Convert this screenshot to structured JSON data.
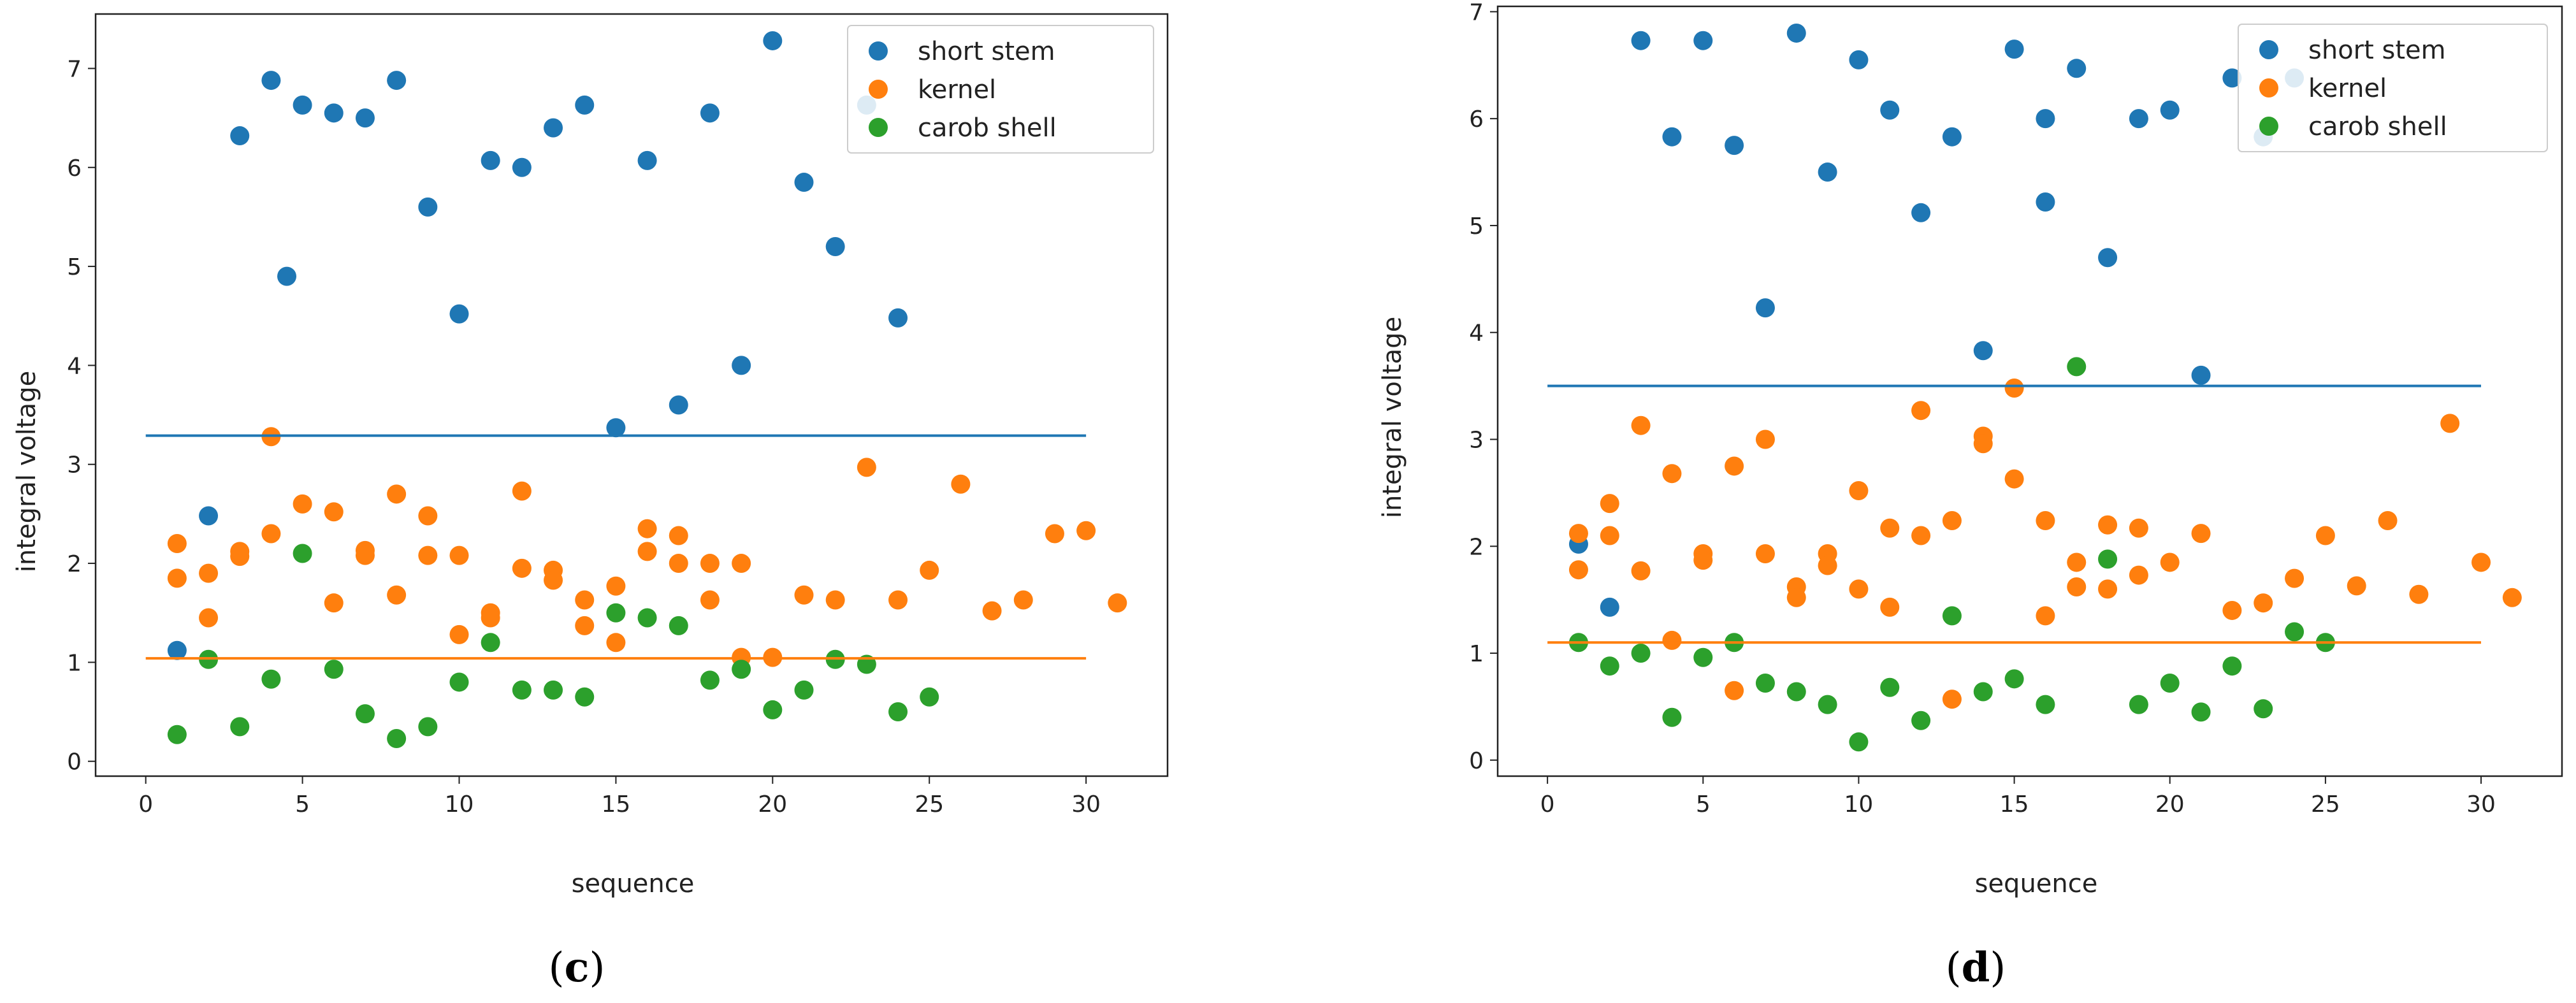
{
  "colors": {
    "short_stem": "#1f77b4",
    "kernel": "#ff7f0e",
    "carob_shell": "#2ca02c"
  },
  "panels": [
    {
      "letter_open": "(",
      "letter": "c",
      "letter_close": ")"
    },
    {
      "letter_open": "(",
      "letter": "d",
      "letter_close": ")"
    }
  ],
  "chart_data": [
    {
      "type": "scatter",
      "panel": "c",
      "title": "",
      "xlabel": "sequence",
      "ylabel": "integral voltage",
      "xlim": [
        -1.6,
        32.6
      ],
      "ylim": [
        -0.15,
        7.55
      ],
      "xticks": [
        0,
        5,
        10,
        15,
        20,
        25,
        30
      ],
      "yticks": [
        0,
        1,
        2,
        3,
        4,
        5,
        6,
        7
      ],
      "grid": false,
      "legend_position": "top-right",
      "series": [
        {
          "name": "short stem",
          "color_key": "short_stem",
          "points": [
            [
              1,
              1.12
            ],
            [
              2,
              2.48
            ],
            [
              3,
              6.32
            ],
            [
              4,
              6.88
            ],
            [
              4.5,
              4.9
            ],
            [
              5,
              6.63
            ],
            [
              6,
              6.55
            ],
            [
              7,
              6.5
            ],
            [
              8,
              6.88
            ],
            [
              9,
              5.6
            ],
            [
              10,
              4.52
            ],
            [
              11,
              6.07
            ],
            [
              12,
              6.0
            ],
            [
              13,
              6.4
            ],
            [
              14,
              6.63
            ],
            [
              15,
              3.37
            ],
            [
              16,
              6.07
            ],
            [
              17,
              3.6
            ],
            [
              18,
              6.55
            ],
            [
              19,
              4.0
            ],
            [
              20,
              7.28
            ],
            [
              21,
              5.85
            ],
            [
              22,
              5.2
            ],
            [
              23,
              6.63
            ],
            [
              24,
              4.48
            ]
          ]
        },
        {
          "name": "kernel",
          "color_key": "kernel",
          "points": [
            [
              1,
              2.2
            ],
            [
              1,
              1.85
            ],
            [
              2,
              1.9
            ],
            [
              2,
              1.45
            ],
            [
              3,
              2.07
            ],
            [
              3,
              2.12
            ],
            [
              4,
              3.28
            ],
            [
              4,
              2.3
            ],
            [
              5,
              2.6
            ],
            [
              6,
              2.52
            ],
            [
              6,
              1.6
            ],
            [
              7,
              2.13
            ],
            [
              7,
              2.08
            ],
            [
              8,
              2.7
            ],
            [
              8,
              1.68
            ],
            [
              9,
              2.48
            ],
            [
              9,
              2.08
            ],
            [
              10,
              2.08
            ],
            [
              10,
              1.28
            ],
            [
              11,
              1.5
            ],
            [
              11,
              1.45
            ],
            [
              12,
              2.73
            ],
            [
              12,
              1.95
            ],
            [
              13,
              1.93
            ],
            [
              13,
              1.83
            ],
            [
              14,
              1.63
            ],
            [
              14,
              1.37
            ],
            [
              15,
              1.77
            ],
            [
              15,
              1.2
            ],
            [
              16,
              2.35
            ],
            [
              16,
              2.12
            ],
            [
              17,
              2.28
            ],
            [
              17,
              2.0
            ],
            [
              18,
              2.0
            ],
            [
              18,
              1.63
            ],
            [
              19,
              2.0
            ],
            [
              19,
              1.05
            ],
            [
              20,
              1.05
            ],
            [
              21,
              1.68
            ],
            [
              22,
              1.63
            ],
            [
              23,
              2.97
            ],
            [
              24,
              1.63
            ],
            [
              25,
              1.93
            ],
            [
              26,
              2.8
            ],
            [
              27,
              1.52
            ],
            [
              28,
              1.63
            ],
            [
              29,
              2.3
            ],
            [
              30,
              2.33
            ],
            [
              31,
              1.6
            ]
          ]
        },
        {
          "name": "carob shell",
          "color_key": "carob_shell",
          "points": [
            [
              1,
              0.27
            ],
            [
              2,
              1.03
            ],
            [
              3,
              0.35
            ],
            [
              4,
              0.83
            ],
            [
              5,
              2.1
            ],
            [
              6,
              0.93
            ],
            [
              7,
              0.48
            ],
            [
              8,
              0.23
            ],
            [
              9,
              0.35
            ],
            [
              10,
              0.8
            ],
            [
              11,
              1.2
            ],
            [
              12,
              0.72
            ],
            [
              13,
              0.72
            ],
            [
              14,
              0.65
            ],
            [
              15,
              1.5
            ],
            [
              16,
              1.45
            ],
            [
              17,
              1.37
            ],
            [
              18,
              0.82
            ],
            [
              19,
              0.93
            ],
            [
              20,
              0.52
            ],
            [
              21,
              0.72
            ],
            [
              22,
              1.03
            ],
            [
              23,
              0.98
            ],
            [
              24,
              0.5
            ],
            [
              25,
              0.65
            ]
          ]
        }
      ],
      "reference_lines": [
        {
          "name": "short stem mean",
          "color_key": "short_stem",
          "x_range": [
            0,
            30
          ],
          "y": 3.29
        },
        {
          "name": "kernel mean",
          "color_key": "kernel",
          "x_range": [
            0,
            30
          ],
          "y": 1.04
        }
      ]
    },
    {
      "type": "scatter",
      "panel": "d",
      "title": "",
      "xlabel": "sequence",
      "ylabel": "integral voltage",
      "xlim": [
        -1.6,
        32.6
      ],
      "ylim": [
        -0.15,
        7.05
      ],
      "xticks": [
        0,
        5,
        10,
        15,
        20,
        25,
        30
      ],
      "yticks": [
        0,
        1,
        2,
        3,
        4,
        5,
        6,
        7
      ],
      "grid": false,
      "legend_position": "top-right",
      "series": [
        {
          "name": "short stem",
          "color_key": "short_stem",
          "points": [
            [
              1,
              2.02
            ],
            [
              2,
              1.43
            ],
            [
              3,
              6.73
            ],
            [
              4,
              5.83
            ],
            [
              5,
              6.73
            ],
            [
              6,
              5.75
            ],
            [
              7,
              4.23
            ],
            [
              8,
              6.8
            ],
            [
              9,
              5.5
            ],
            [
              10,
              6.55
            ],
            [
              11,
              6.08
            ],
            [
              12,
              5.12
            ],
            [
              13,
              5.83
            ],
            [
              14,
              3.83
            ],
            [
              15,
              6.65
            ],
            [
              16,
              6.0
            ],
            [
              16,
              5.22
            ],
            [
              17,
              6.47
            ],
            [
              18,
              4.7
            ],
            [
              19,
              6.0
            ],
            [
              20,
              6.08
            ],
            [
              21,
              3.6
            ],
            [
              22,
              6.38
            ],
            [
              23,
              5.83
            ],
            [
              24,
              6.38
            ]
          ]
        },
        {
          "name": "kernel",
          "color_key": "kernel",
          "points": [
            [
              1,
              2.12
            ],
            [
              1,
              1.78
            ],
            [
              2,
              2.4
            ],
            [
              2,
              2.1
            ],
            [
              3,
              3.13
            ],
            [
              3,
              1.77
            ],
            [
              4,
              2.68
            ],
            [
              4,
              1.12
            ],
            [
              5,
              1.93
            ],
            [
              5,
              1.87
            ],
            [
              6,
              2.75
            ],
            [
              6,
              0.65
            ],
            [
              7,
              3.0
            ],
            [
              7,
              1.93
            ],
            [
              8,
              1.62
            ],
            [
              8,
              1.52
            ],
            [
              9,
              1.93
            ],
            [
              9,
              1.82
            ],
            [
              10,
              2.52
            ],
            [
              10,
              1.6
            ],
            [
              11,
              2.17
            ],
            [
              11,
              1.43
            ],
            [
              12,
              3.27
            ],
            [
              12,
              2.1
            ],
            [
              13,
              2.24
            ],
            [
              13,
              0.57
            ],
            [
              14,
              3.03
            ],
            [
              14,
              2.96
            ],
            [
              15,
              3.48
            ],
            [
              15,
              2.63
            ],
            [
              16,
              2.24
            ],
            [
              16,
              1.35
            ],
            [
              17,
              1.85
            ],
            [
              17,
              1.62
            ],
            [
              18,
              2.2
            ],
            [
              18,
              1.6
            ],
            [
              19,
              2.17
            ],
            [
              19,
              1.73
            ],
            [
              20,
              1.85
            ],
            [
              21,
              2.12
            ],
            [
              22,
              1.4
            ],
            [
              23,
              1.47
            ],
            [
              24,
              1.7
            ],
            [
              25,
              2.1
            ],
            [
              26,
              1.63
            ],
            [
              27,
              2.24
            ],
            [
              28,
              1.55
            ],
            [
              29,
              3.15
            ],
            [
              30,
              1.85
            ],
            [
              31,
              1.52
            ]
          ]
        },
        {
          "name": "carob shell",
          "color_key": "carob_shell",
          "points": [
            [
              1,
              1.1
            ],
            [
              2,
              0.88
            ],
            [
              3,
              1.0
            ],
            [
              4,
              0.4
            ],
            [
              5,
              0.96
            ],
            [
              6,
              1.1
            ],
            [
              7,
              0.72
            ],
            [
              8,
              0.64
            ],
            [
              9,
              0.52
            ],
            [
              10,
              0.17
            ],
            [
              11,
              0.68
            ],
            [
              12,
              0.37
            ],
            [
              13,
              1.35
            ],
            [
              14,
              0.64
            ],
            [
              15,
              0.76
            ],
            [
              16,
              0.52
            ],
            [
              17,
              3.68
            ],
            [
              18,
              1.88
            ],
            [
              19,
              0.52
            ],
            [
              20,
              0.72
            ],
            [
              21,
              0.45
            ],
            [
              22,
              0.88
            ],
            [
              23,
              0.48
            ],
            [
              24,
              1.2
            ],
            [
              25,
              1.1
            ]
          ]
        }
      ],
      "reference_lines": [
        {
          "name": "short stem mean",
          "color_key": "short_stem",
          "x_range": [
            0,
            30
          ],
          "y": 3.5
        },
        {
          "name": "kernel mean",
          "color_key": "kernel",
          "x_range": [
            0,
            30
          ],
          "y": 1.1
        }
      ]
    }
  ]
}
